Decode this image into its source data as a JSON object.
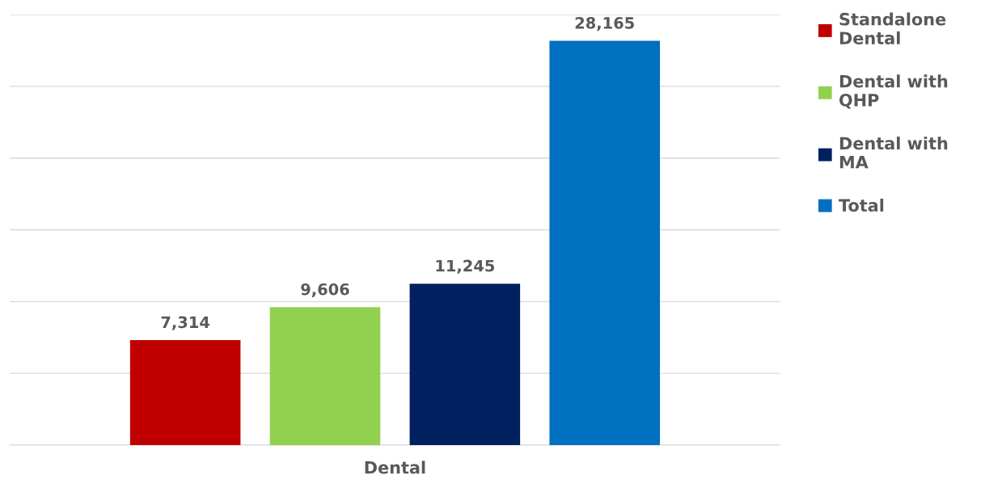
{
  "chart_data": {
    "type": "bar",
    "categories": [
      null
    ],
    "xlabel": "Dental",
    "series": [
      {
        "name": "Standalone Dental",
        "color": "#c00000",
        "values": [
          7314
        ],
        "value_labels": [
          "7,314"
        ]
      },
      {
        "name": "Dental with QHP",
        "color": "#92d050",
        "values": [
          9606
        ],
        "value_labels": [
          "9,606"
        ]
      },
      {
        "name": "Dental with MA",
        "color": "#002060",
        "values": [
          11245
        ],
        "value_labels": [
          "11,245"
        ]
      },
      {
        "name": "Total",
        "color": "#0070c0",
        "values": [
          28165
        ],
        "value_labels": [
          "28,165"
        ]
      }
    ],
    "grid": "y",
    "legend": "right",
    "tick_labels": false
  }
}
